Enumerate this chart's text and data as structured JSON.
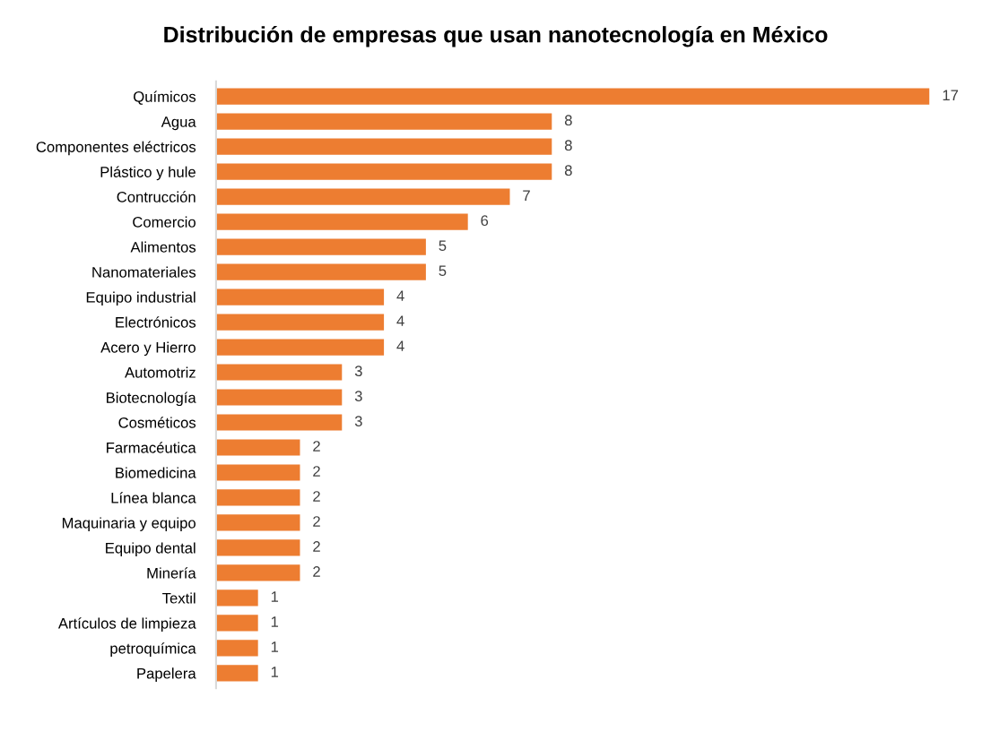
{
  "chart_data": {
    "type": "bar",
    "orientation": "horizontal",
    "title": "Distribución de empresas que usan nanotecnología en México",
    "categories": [
      "Químicos",
      "Agua",
      "Componentes eléctricos",
      "Plástico y hule",
      "Contrucción",
      "Comercio",
      "Alimentos",
      "Nanomateriales",
      "Equipo industrial",
      "Electrónicos",
      "Acero y Hierro",
      "Automotriz",
      "Biotecnología",
      "Cosméticos",
      "Farmacéutica",
      "Biomedicina",
      "Línea blanca",
      "Maquinaria y equipo",
      "Equipo dental",
      "Minería",
      "Textil",
      "Artículos de limpieza",
      "petroquímica",
      "Papelera"
    ],
    "values": [
      17,
      8,
      8,
      8,
      7,
      6,
      5,
      5,
      4,
      4,
      4,
      3,
      3,
      3,
      2,
      2,
      2,
      2,
      2,
      2,
      1,
      1,
      1,
      1
    ],
    "color": "#ed7d31",
    "data_labels": true,
    "tick_labels": "y"
  }
}
